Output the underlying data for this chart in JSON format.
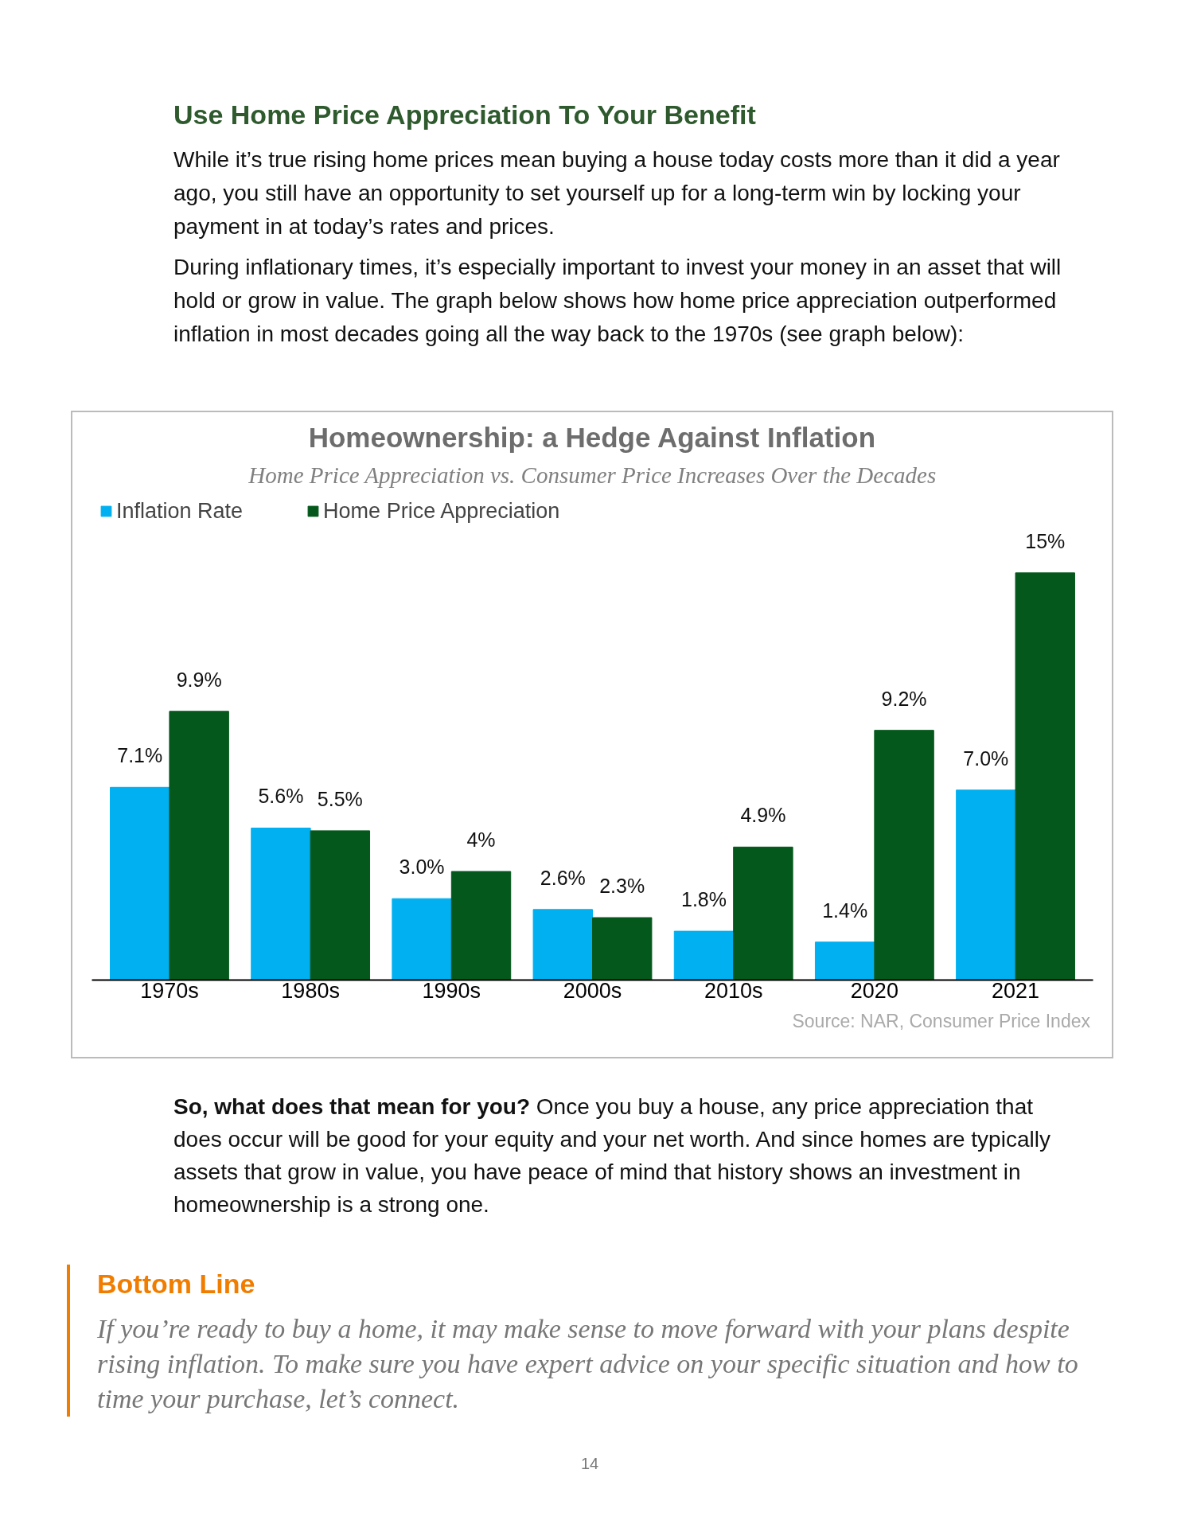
{
  "chart_data": {
    "type": "bar",
    "title": "Homeownership: a Hedge Against Inflation",
    "subtitle": "Home Price Appreciation vs. Consumer Price Increases Over the Decades",
    "categories": [
      "1970s",
      "1980s",
      "1990s",
      "2000s",
      "2010s",
      "2020",
      "2021"
    ],
    "series": [
      {
        "name": "Inflation Rate",
        "color": "#00b0f0",
        "values": [
          7.1,
          5.6,
          3.0,
          2.6,
          1.8,
          1.4,
          7.0
        ],
        "value_labels": [
          "7.1%",
          "5.6%",
          "3.0%",
          "2.6%",
          "1.8%",
          "1.4%",
          "7.0%"
        ]
      },
      {
        "name": "Home Price Appreciation",
        "color": "#04581b",
        "values": [
          9.9,
          5.5,
          4,
          2.3,
          4.9,
          9.2,
          15
        ],
        "value_labels": [
          "9.9%",
          "5.5%",
          "4%",
          "2.3%",
          "4.9%",
          "9.2%",
          "15%"
        ]
      }
    ],
    "legend": "top left",
    "grid": false,
    "annotations": [
      "Use Home Price Appreciation To Your Benefit",
      "While it’s true rising home prices mean buying a house today costs more than it did a year ago, you still have an opportunity to set yourself up for a long-term win by locking your payment in at today’s rates and prices.",
      "During inflationary times, it’s especially important to invest your money in an asset that will hold or grow in value. The graph below shows how home price appreciation outperformed inflation in most decades going all the way back to the 1970s (see graph below):",
      "Source: NAR, Consumer Price Index",
      "So, what does that mean for you?",
      "Once you buy a house, any price appreciation that does occur will be good for your equity and your net worth. And since homes are typically assets that grow in value, you have peace of mind that history shows an investment in homeownership is a strong one.",
      "Bottom Line",
      "If you’re ready to buy a home, it may make sense to move forward with your plans despite rising inflation. To make sure you have expert advice on your specific situation and how to time your purchase, let’s connect.",
      "14"
    ]
  }
}
